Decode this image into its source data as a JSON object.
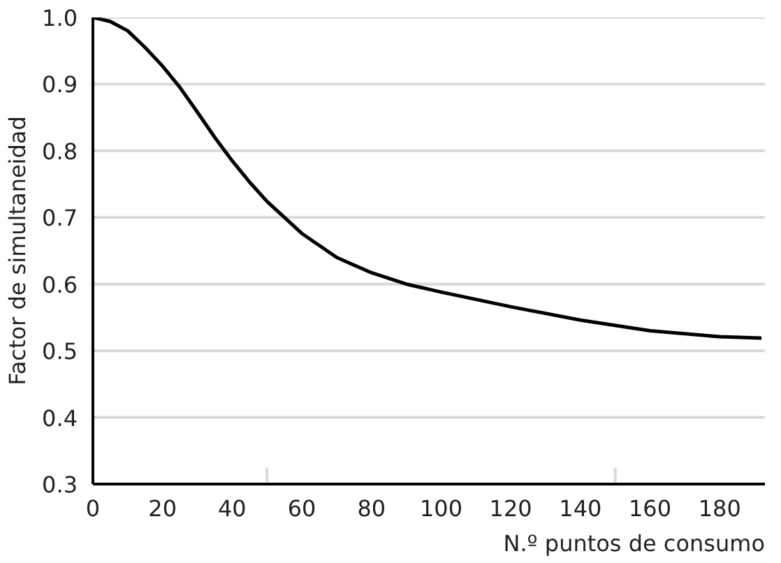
{
  "chart_data": {
    "type": "line",
    "xlabel": "N.º puntos de consumo",
    "ylabel": "Factor de simultaneidad",
    "x": [
      0,
      5,
      10,
      15,
      20,
      25,
      30,
      35,
      40,
      45,
      50,
      60,
      70,
      80,
      90,
      100,
      120,
      140,
      160,
      180,
      192
    ],
    "series": [
      {
        "color": "#000000",
        "values": [
          1.0,
          0.994,
          0.98,
          0.955,
          0.927,
          0.895,
          0.858,
          0.82,
          0.785,
          0.753,
          0.724,
          0.676,
          0.64,
          0.617,
          0.6,
          0.588,
          0.566,
          0.546,
          0.53,
          0.521,
          0.519
        ]
      }
    ],
    "xlim": [
      0,
      193
    ],
    "xticks": [
      0,
      20,
      40,
      {
        "value": 50,
        "label": null
      },
      60,
      80,
      100,
      120,
      140,
      {
        "value": 150,
        "label": null
      },
      160,
      180
    ],
    "ylim": [
      0.3,
      1.0
    ],
    "yticks": [
      {
        "value": 0.3,
        "label": "0.3"
      },
      0.4,
      0.5,
      0.6,
      0.7,
      0.8,
      0.9,
      {
        "value": 1.0,
        "label": "1.0"
      }
    ],
    "grid": "y",
    "marker": "none",
    "line_style": "solid"
  }
}
